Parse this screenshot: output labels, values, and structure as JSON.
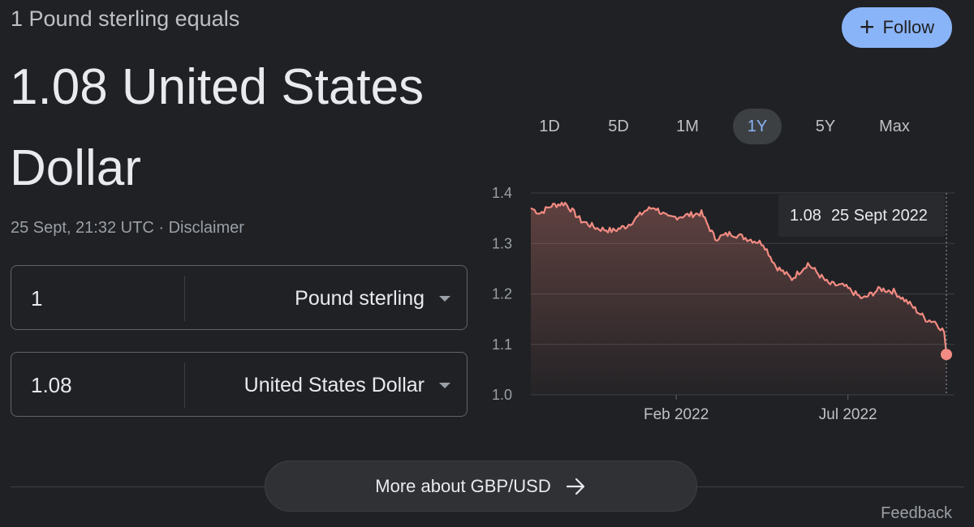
{
  "header": {
    "subtitle": "1 Pound sterling equals",
    "result": "1.08 United States Dollar",
    "timestamp": "25 Sept, 21:32 UTC",
    "separator": " · ",
    "disclaimer": "Disclaimer",
    "follow_label": "Follow"
  },
  "converter": {
    "from": {
      "amount": "1",
      "currency": "Pound sterling"
    },
    "to": {
      "amount": "1.08",
      "currency": "United States Dollar"
    }
  },
  "range_tabs": [
    {
      "label": "1D",
      "active": false
    },
    {
      "label": "5D",
      "active": false
    },
    {
      "label": "1M",
      "active": false
    },
    {
      "label": "1Y",
      "active": true
    },
    {
      "label": "5Y",
      "active": false
    },
    {
      "label": "Max",
      "active": false
    }
  ],
  "tooltip": {
    "value": "1.08",
    "date": "25 Sept 2022"
  },
  "more_label": "More about GBP/USD",
  "feedback_label": "Feedback",
  "colors": {
    "line": "#f28b82",
    "accent": "#8ab4f8",
    "background": "#202124"
  },
  "chart_data": {
    "type": "line",
    "title": "",
    "xlabel": "",
    "ylabel": "",
    "ylim": [
      1.0,
      1.4
    ],
    "yticks": [
      "1.4",
      "1.3",
      "1.2",
      "1.1",
      "1.0"
    ],
    "xticks": [
      {
        "label": "Feb 2022",
        "date": "2022-02-01"
      },
      {
        "label": "Jul 2022",
        "date": "2022-07-01"
      }
    ],
    "grid": true,
    "series": [
      {
        "x": [
          "2021-09-27",
          "2021-10-05",
          "2021-10-15",
          "2021-10-27",
          "2021-11-10",
          "2021-11-24",
          "2021-12-08",
          "2021-12-20",
          "2022-01-05",
          "2022-01-13",
          "2022-01-25",
          "2022-02-08",
          "2022-02-23",
          "2022-03-07",
          "2022-03-21",
          "2022-04-04",
          "2022-04-18",
          "2022-04-29",
          "2022-05-13",
          "2022-05-27",
          "2022-06-14",
          "2022-06-28",
          "2022-07-14",
          "2022-07-29",
          "2022-08-10",
          "2022-08-24",
          "2022-09-07",
          "2022-09-15",
          "2022-09-23",
          "2022-09-25"
        ],
        "values": [
          1.37,
          1.36,
          1.375,
          1.38,
          1.345,
          1.33,
          1.325,
          1.335,
          1.365,
          1.372,
          1.35,
          1.355,
          1.36,
          1.31,
          1.32,
          1.31,
          1.3,
          1.255,
          1.23,
          1.26,
          1.22,
          1.215,
          1.19,
          1.21,
          1.205,
          1.18,
          1.15,
          1.145,
          1.125,
          1.08
        ]
      }
    ]
  }
}
